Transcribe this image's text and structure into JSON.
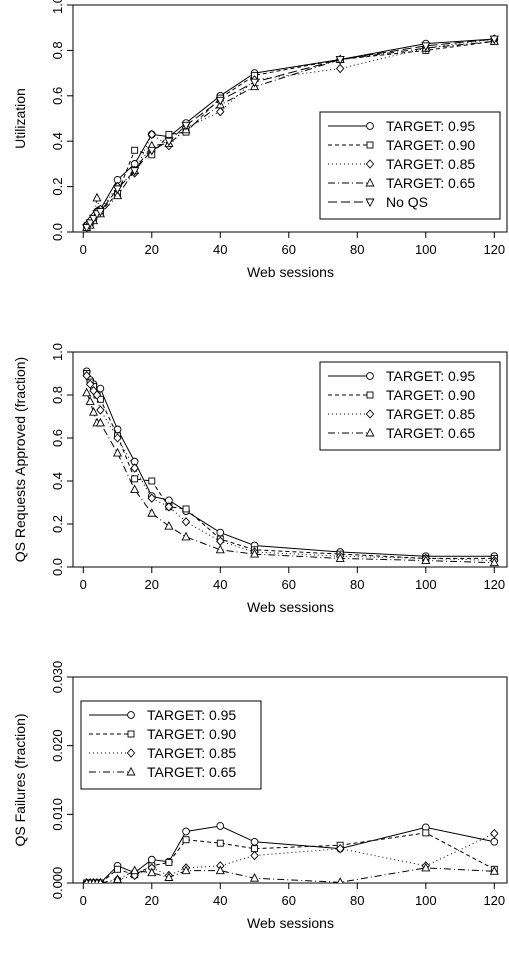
{
  "chart_data": [
    {
      "type": "line",
      "xlabel": "Web sessions",
      "ylabel": "Utilization",
      "xlim": [
        -3,
        124
      ],
      "ylim": [
        0,
        1.0
      ],
      "xticks": [
        0,
        20,
        40,
        60,
        80,
        100,
        120
      ],
      "xtick_labels": [
        "0",
        "20",
        "40",
        "60",
        "80",
        "100",
        "120"
      ],
      "yticks": [
        0,
        0.2,
        0.4,
        0.6,
        0.8,
        1.0
      ],
      "ytick_labels": [
        "0.0",
        "0.2",
        "0.4",
        "0.6",
        "0.8",
        "1.0"
      ],
      "legend_position": "bottom-right",
      "x": [
        1,
        2,
        3,
        4,
        5,
        10,
        15,
        20,
        25,
        30,
        40,
        50,
        75,
        100,
        120
      ],
      "series": [
        {
          "name": "TARGET: 0.95",
          "marker": "circle",
          "dash": "",
          "values": [
            0.03,
            0.04,
            0.06,
            0.09,
            0.1,
            0.23,
            0.3,
            0.43,
            0.42,
            0.48,
            0.6,
            0.7,
            0.76,
            0.83,
            0.85
          ]
        },
        {
          "name": "TARGET: 0.90",
          "marker": "square",
          "dash": "4,3",
          "values": [
            0.02,
            0.04,
            0.06,
            0.08,
            0.09,
            0.17,
            0.36,
            0.34,
            0.43,
            0.44,
            0.59,
            0.69,
            0.76,
            0.8,
            0.84
          ]
        },
        {
          "name": "TARGET: 0.85",
          "marker": "diamond",
          "dash": "1,3",
          "values": [
            0.03,
            0.05,
            0.07,
            0.09,
            0.1,
            0.2,
            0.26,
            0.43,
            0.38,
            0.46,
            0.53,
            0.67,
            0.72,
            0.81,
            0.85
          ]
        },
        {
          "name": "TARGET: 0.65",
          "marker": "triangle",
          "dash": "7,3,1,3",
          "values": [
            0.02,
            0.03,
            0.05,
            0.15,
            0.08,
            0.16,
            0.27,
            0.38,
            0.39,
            0.45,
            0.56,
            0.64,
            0.76,
            0.81,
            0.84
          ]
        },
        {
          "name": "No QS",
          "marker": "triangle-down",
          "dash": "9,4",
          "values": [
            0.02,
            0.04,
            0.06,
            0.08,
            0.09,
            0.19,
            0.27,
            0.36,
            0.4,
            0.47,
            0.58,
            0.66,
            0.76,
            0.82,
            0.85
          ]
        }
      ]
    },
    {
      "type": "line",
      "xlabel": "Web sessions",
      "ylabel": "QS Requests Approved (fraction)",
      "xlim": [
        -3,
        124
      ],
      "ylim": [
        0,
        1.0
      ],
      "xticks": [
        0,
        20,
        40,
        60,
        80,
        100,
        120
      ],
      "xtick_labels": [
        "0",
        "20",
        "40",
        "60",
        "80",
        "100",
        "120"
      ],
      "yticks": [
        0,
        0.2,
        0.4,
        0.6,
        0.8,
        1.0
      ],
      "ytick_labels": [
        "0.0",
        "0.2",
        "0.4",
        "0.6",
        "0.8",
        "1.0"
      ],
      "legend_position": "top-right",
      "x": [
        1,
        2,
        3,
        4,
        5,
        10,
        15,
        20,
        25,
        30,
        40,
        50,
        75,
        100,
        120
      ],
      "series": [
        {
          "name": "TARGET: 0.95",
          "marker": "circle",
          "dash": "",
          "values": [
            0.91,
            0.87,
            0.85,
            0.82,
            0.83,
            0.64,
            0.49,
            0.33,
            0.31,
            0.26,
            0.16,
            0.1,
            0.07,
            0.05,
            0.05
          ]
        },
        {
          "name": "TARGET: 0.90",
          "marker": "square",
          "dash": "4,3",
          "values": [
            0.9,
            0.86,
            0.84,
            0.8,
            0.78,
            0.61,
            0.41,
            0.4,
            0.28,
            0.27,
            0.13,
            0.08,
            0.06,
            0.04,
            0.04
          ]
        },
        {
          "name": "TARGET: 0.85",
          "marker": "diamond",
          "dash": "1,3",
          "values": [
            0.89,
            0.85,
            0.82,
            0.8,
            0.73,
            0.6,
            0.46,
            0.32,
            0.28,
            0.21,
            0.12,
            0.07,
            0.05,
            0.04,
            0.03
          ]
        },
        {
          "name": "TARGET: 0.65",
          "marker": "triangle",
          "dash": "7,3,1,3",
          "values": [
            0.81,
            0.77,
            0.72,
            0.67,
            0.67,
            0.53,
            0.36,
            0.25,
            0.19,
            0.14,
            0.08,
            0.06,
            0.04,
            0.03,
            0.02
          ]
        }
      ]
    },
    {
      "type": "line",
      "xlabel": "Web sessions",
      "ylabel": "QS Failures (fraction)",
      "xlim": [
        -3,
        124
      ],
      "ylim": [
        0,
        0.03
      ],
      "xticks": [
        0,
        20,
        40,
        60,
        80,
        100,
        120
      ],
      "xtick_labels": [
        "0",
        "20",
        "40",
        "60",
        "80",
        "100",
        "120"
      ],
      "yticks": [
        0,
        0.01,
        0.02,
        0.03
      ],
      "ytick_labels": [
        "0.000",
        "0.010",
        "0.020",
        "0.030"
      ],
      "legend_position": "top-left",
      "x": [
        1,
        2,
        3,
        4,
        5,
        10,
        15,
        20,
        25,
        30,
        40,
        50,
        75,
        100,
        120
      ],
      "series": [
        {
          "name": "TARGET: 0.95",
          "marker": "circle",
          "dash": "",
          "values": [
            0,
            0,
            0,
            0,
            0,
            0.0025,
            0.0015,
            0.0034,
            0.0031,
            0.0075,
            0.0083,
            0.006,
            0.005,
            0.0081,
            0.006
          ]
        },
        {
          "name": "TARGET: 0.90",
          "marker": "square",
          "dash": "4,3",
          "values": [
            0,
            0,
            0,
            0,
            0,
            0.002,
            0.0012,
            0.0025,
            0.003,
            0.0063,
            0.0058,
            0.005,
            0.0055,
            0.0073,
            0.002
          ]
        },
        {
          "name": "TARGET: 0.85",
          "marker": "diamond",
          "dash": "1,3",
          "values": [
            0,
            0,
            0,
            0,
            0,
            0.0005,
            0.0011,
            0.0022,
            0.0011,
            0.0022,
            0.0025,
            0.004,
            0.005,
            0.0025,
            0.0072
          ]
        },
        {
          "name": "TARGET: 0.65",
          "marker": "triangle",
          "dash": "7,3,1,3",
          "values": [
            0,
            0,
            0,
            0,
            0,
            0.0005,
            0.0018,
            0.0015,
            0.0008,
            0.0018,
            0.0018,
            0.0007,
            0.0001,
            0.0022,
            0.0017
          ]
        }
      ]
    }
  ]
}
